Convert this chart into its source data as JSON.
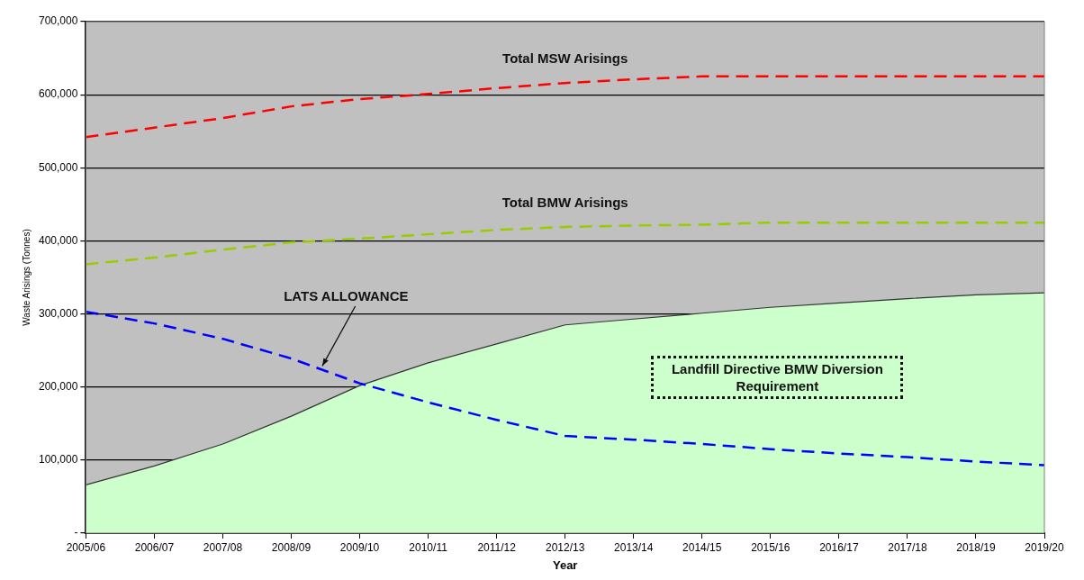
{
  "chart_data": {
    "type": "line",
    "xlabel": "Year",
    "ylabel": "Waste Arisings (Tonnes)",
    "categories": [
      "2005/06",
      "2006/07",
      "2007/08",
      "2008/09",
      "2009/10",
      "2010/11",
      "2011/12",
      "2012/13",
      "2013/14",
      "2014/15",
      "2015/16",
      "2016/17",
      "2017/18",
      "2018/19",
      "2019/20"
    ],
    "series": [
      {
        "name": "Total MSW Arisings",
        "color": "#ff0000",
        "line_style": "dashed",
        "values": [
          542000,
          555000,
          568000,
          584000,
          594000,
          601000,
          609000,
          616000,
          621000,
          625000,
          625000,
          625000,
          625000,
          625000,
          625000
        ]
      },
      {
        "name": "Total BMW Arisings",
        "color": "#99cc00",
        "line_style": "dashed",
        "values": [
          368000,
          377000,
          388000,
          398000,
          403000,
          409000,
          415000,
          419000,
          421000,
          422000,
          425000,
          425000,
          425000,
          425000,
          425000
        ]
      },
      {
        "name": "LATS ALLOWANCE",
        "color": "#0000ff",
        "line_style": "dashed",
        "values": [
          303000,
          287000,
          266000,
          239000,
          205000,
          179000,
          155000,
          133000,
          128000,
          122000,
          115000,
          109000,
          104000,
          98000,
          93000
        ]
      },
      {
        "name": "Landfill Directive BMW Diversion Requirement",
        "type": "area",
        "color": "#ccffcc",
        "values": [
          66000,
          92000,
          122000,
          160000,
          202000,
          233000,
          259000,
          285000,
          293000,
          301000,
          309000,
          315000,
          321000,
          326000,
          329000
        ]
      }
    ],
    "ylim": [
      0,
      700000
    ],
    "yticks": [
      {
        "value": 0,
        "label": "-"
      },
      {
        "value": 100000,
        "label": "100,000"
      },
      {
        "value": 200000,
        "label": "200,000"
      },
      {
        "value": 300000,
        "label": "300,000"
      },
      {
        "value": 400000,
        "label": "400,000"
      },
      {
        "value": 500000,
        "label": "500,000"
      },
      {
        "value": 600000,
        "label": "600,000"
      },
      {
        "value": 700000,
        "label": "700,000"
      }
    ],
    "grid": "y",
    "legend": false,
    "marker": "none"
  }
}
